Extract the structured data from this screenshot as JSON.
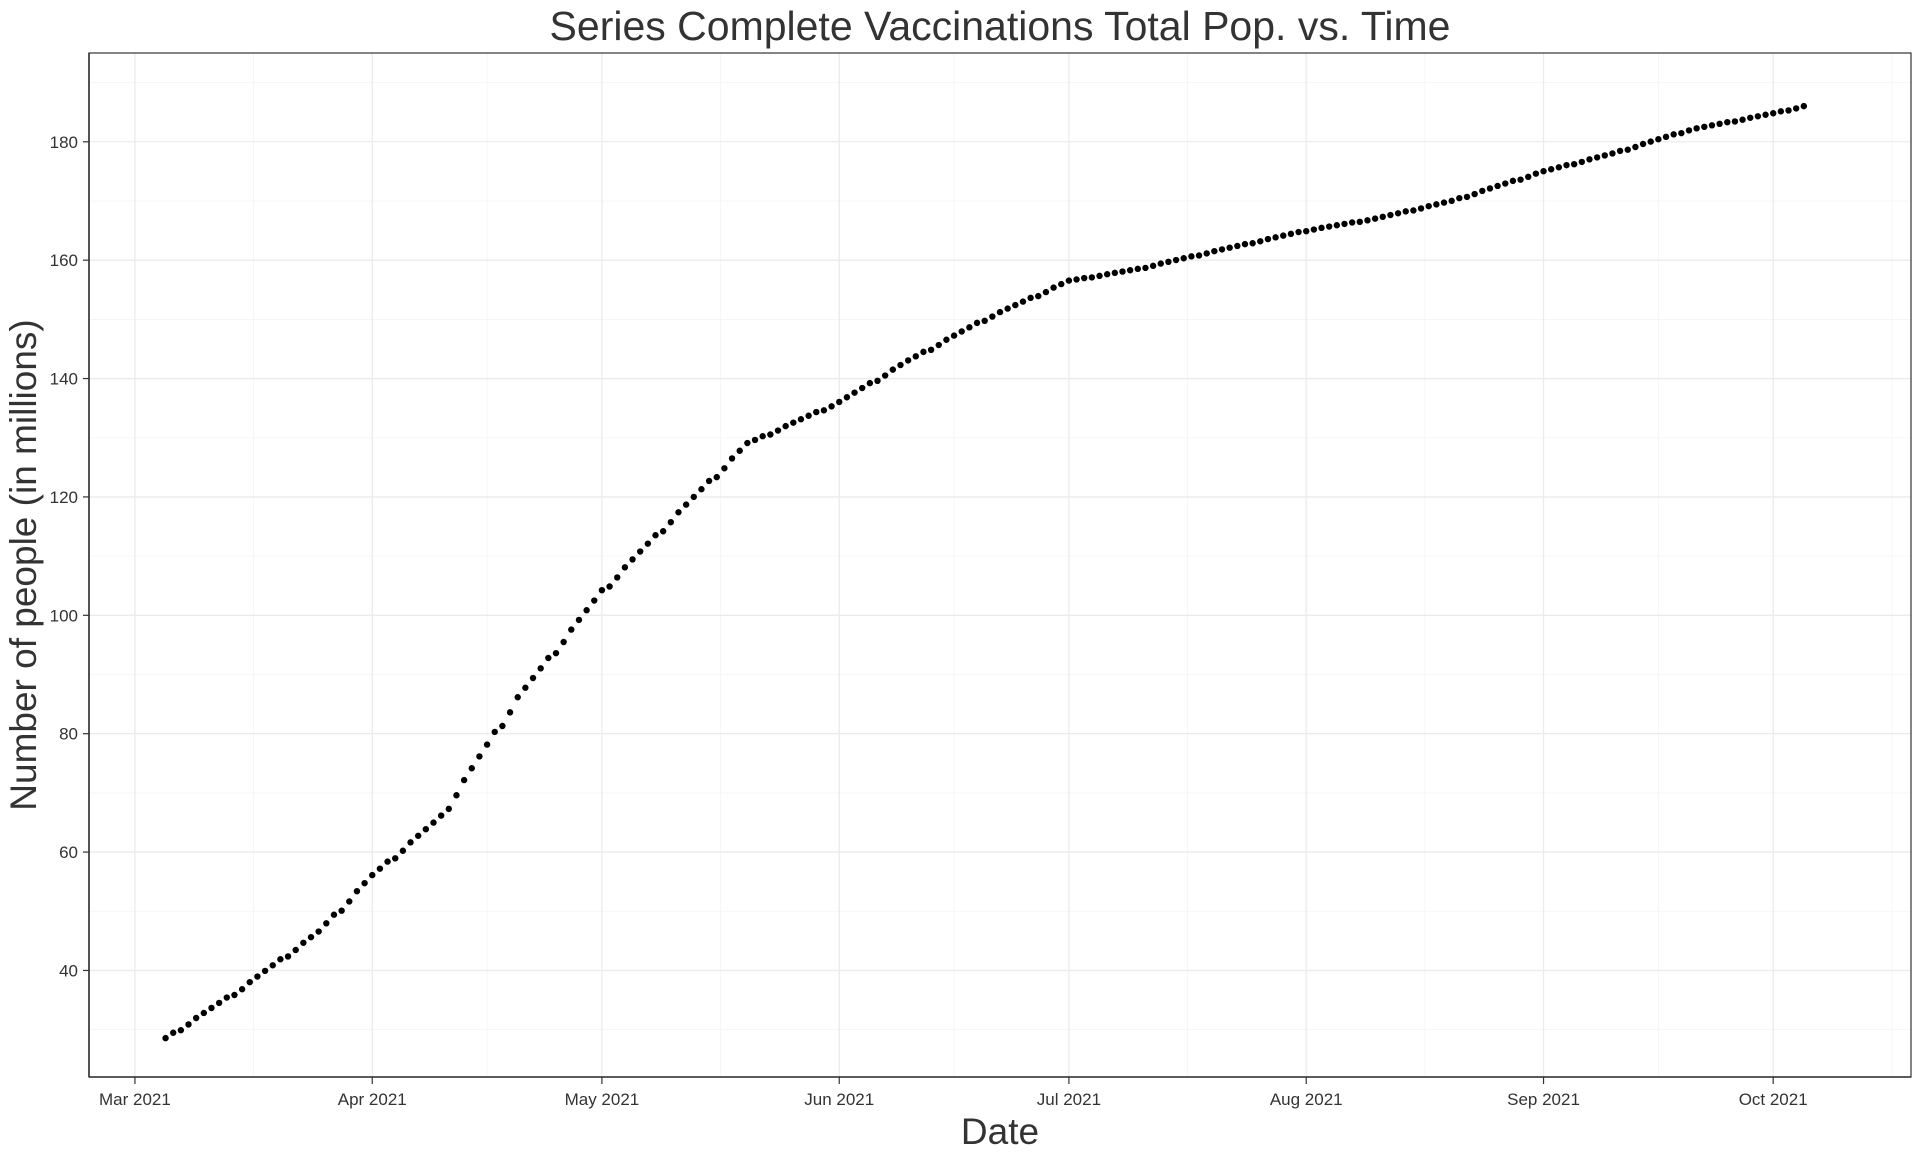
{
  "chart_data": {
    "type": "scatter",
    "title": "Series Complete Vaccinations Total Pop. vs. Time",
    "xlabel": "Date",
    "ylabel": "Number of people (in millions)",
    "x_axis": {
      "type": "date",
      "range": [
        "2021-02-23",
        "2021-10-19"
      ],
      "ticks": [
        {
          "value": "2021-03-01",
          "label": "Mar 2021"
        },
        {
          "value": "2021-04-01",
          "label": "Apr 2021"
        },
        {
          "value": "2021-05-01",
          "label": "May 2021"
        },
        {
          "value": "2021-06-01",
          "label": "Jun 2021"
        },
        {
          "value": "2021-07-01",
          "label": "Jul 2021"
        },
        {
          "value": "2021-08-01",
          "label": "Aug 2021"
        },
        {
          "value": "2021-09-01",
          "label": "Sep 2021"
        },
        {
          "value": "2021-10-01",
          "label": "Oct 2021"
        }
      ]
    },
    "y_axis": {
      "range": [
        22,
        195
      ],
      "ticks": [
        40,
        60,
        80,
        100,
        120,
        140,
        160,
        180
      ]
    },
    "grid": true,
    "series_points": [
      [
        "2021-03-05",
        28.5
      ],
      [
        "2021-03-15",
        37.0
      ],
      [
        "2021-03-25",
        46.5
      ],
      [
        "2021-04-01",
        56.0
      ],
      [
        "2021-04-10",
        66.0
      ],
      [
        "2021-04-20",
        86.0
      ],
      [
        "2021-05-01",
        104.0
      ],
      [
        "2021-05-10",
        116.0
      ],
      [
        "2021-05-20",
        129.0
      ],
      [
        "2021-06-01",
        136.0
      ],
      [
        "2021-06-10",
        143.0
      ],
      [
        "2021-06-20",
        150.0
      ],
      [
        "2021-07-01",
        156.5
      ],
      [
        "2021-07-10",
        158.5
      ],
      [
        "2021-07-20",
        161.5
      ],
      [
        "2021-08-01",
        165.0
      ],
      [
        "2021-08-10",
        167.0
      ],
      [
        "2021-08-20",
        170.0
      ],
      [
        "2021-09-01",
        175.0
      ],
      [
        "2021-09-10",
        178.0
      ],
      [
        "2021-09-20",
        182.0
      ],
      [
        "2021-10-01",
        184.8
      ],
      [
        "2021-10-05",
        186.0
      ]
    ],
    "point_color": "#000000"
  }
}
